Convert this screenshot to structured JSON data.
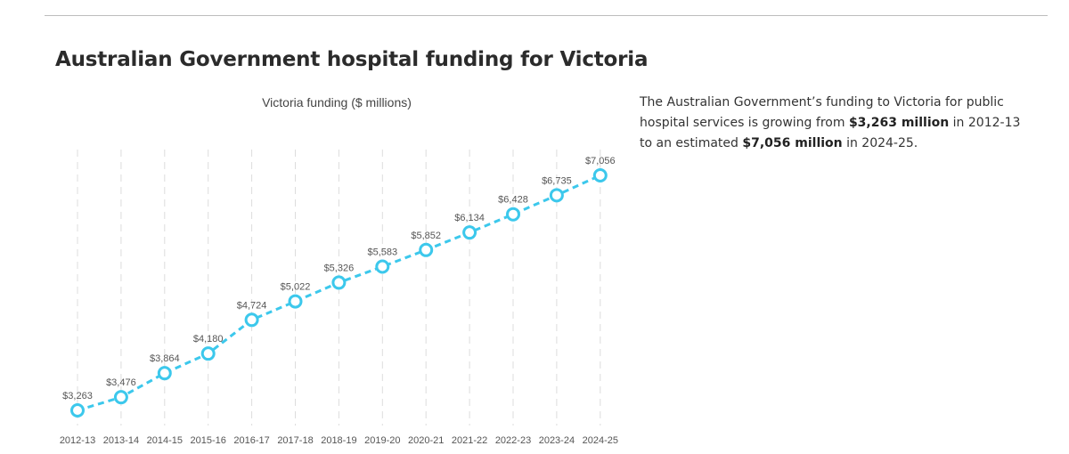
{
  "page": {
    "title": "Australian Government hospital funding for Victoria"
  },
  "description": {
    "part1": "The Australian Government’s funding to Victoria for public hospital services is growing from ",
    "strong1": "$3,263 million",
    "part2": " in 2012-13 to an estimated ",
    "strong2": "$7,056 million",
    "part3": " in 2024-25."
  },
  "chart_data": {
    "type": "line",
    "title": "Victoria funding ($ millions)",
    "categories": [
      "2012-13",
      "2013-14",
      "2014-15",
      "2015-16",
      "2016-17",
      "2017-18",
      "2018-19",
      "2019-20",
      "2020-21",
      "2021-22",
      "2022-23",
      "2023-24",
      "2024-25"
    ],
    "series": [
      {
        "values": [
          3263,
          3476,
          3864,
          4180,
          4724,
          5022,
          5326,
          5583,
          5852,
          6134,
          6428,
          6735,
          7056
        ],
        "labels": [
          "$3,263",
          "$3,476",
          "$3,864",
          "$4,180",
          "$4,724",
          "$5,022",
          "$5,326",
          "$5,583",
          "$5,852",
          "$6,134",
          "$6,428",
          "$6,735",
          "$7,056"
        ],
        "color": "#3cc8ec"
      }
    ],
    "line_style": "dashed",
    "markers": "hollow-circle",
    "grid": "vertical-dashed",
    "y_axis_visible": false,
    "legend": "none"
  }
}
